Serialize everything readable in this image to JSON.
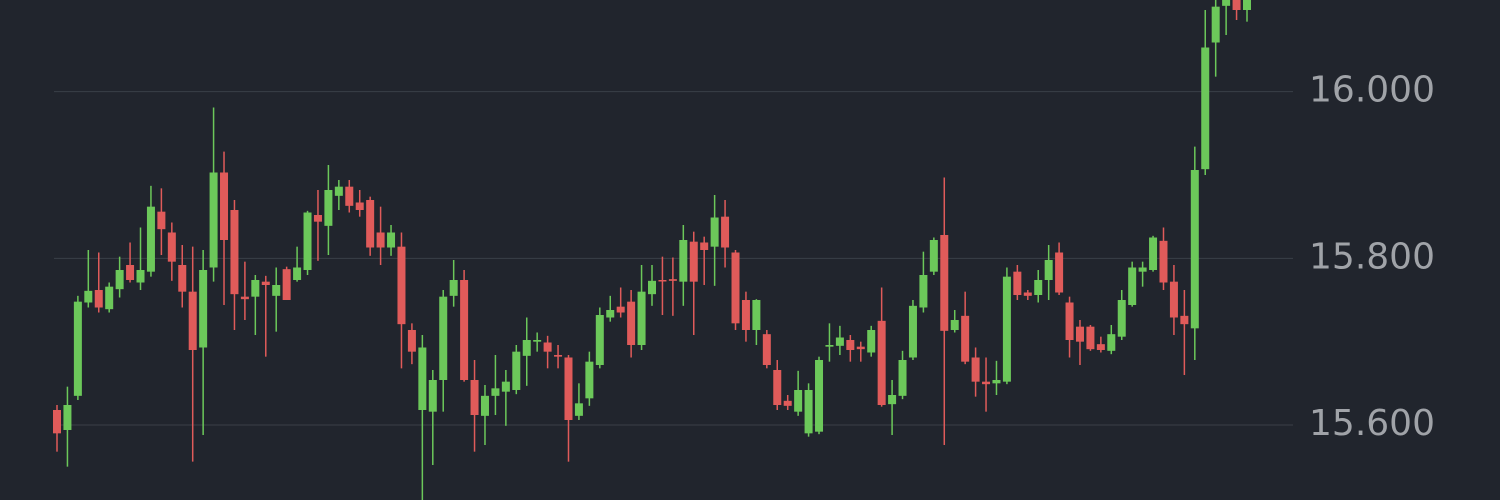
{
  "chart_data": {
    "type": "candlestick",
    "up_color": "#6cc85a",
    "down_color": "#e05b5a",
    "grid": true,
    "ylim": [
      15.51,
      16.11
    ],
    "yticks": [
      {
        "value": 15.6,
        "label": "15.600"
      },
      {
        "value": 15.8,
        "label": "15.800"
      },
      {
        "value": 16,
        "label": "16.000"
      }
    ],
    "open": [
      15.618,
      15.594,
      15.635,
      15.747,
      15.762,
      15.739,
      15.763,
      15.792,
      15.771,
      15.784,
      15.856,
      15.831,
      15.792,
      15.76,
      15.693,
      15.789,
      15.903,
      15.858,
      15.754,
      15.754,
      15.772,
      15.755,
      15.787,
      15.774,
      15.786,
      15.852,
      15.839,
      15.875,
      15.886,
      15.867,
      15.87,
      15.831,
      15.813,
      15.814,
      15.714,
      15.618,
      15.616,
      15.654,
      15.755,
      15.774,
      15.654,
      15.611,
      15.635,
      15.64,
      15.642,
      15.683,
      15.7,
      15.699,
      15.684,
      15.681,
      15.611,
      15.632,
      15.672,
      15.729,
      15.742,
      15.748,
      15.696,
      15.757,
      15.774,
      15.775,
      15.772,
      15.82,
      15.819,
      15.814,
      15.85,
      15.807,
      15.75,
      15.714,
      15.709,
      15.666,
      15.629,
      15.616,
      15.59,
      15.592,
      15.694,
      15.695,
      15.702,
      15.694,
      15.687,
      15.725,
      15.625,
      15.635,
      15.681,
      15.741,
      15.784,
      15.828,
      15.714,
      15.731,
      15.681,
      15.652,
      15.65,
      15.652,
      15.784,
      15.759,
      15.756,
      15.774,
      15.807,
      15.747,
      15.718,
      15.718,
      15.697,
      15.689,
      15.706,
      15.744,
      15.784,
      15.786,
      15.821,
      15.772,
      15.731,
      15.716,
      15.907,
      16.059,
      16.103,
      16.118,
      16.098
    ],
    "high": [
      15.624,
      15.646,
      15.755,
      15.81,
      15.807,
      15.771,
      15.802,
      15.819,
      15.837,
      15.887,
      15.884,
      15.843,
      15.816,
      15.814,
      15.81,
      15.981,
      15.928,
      15.87,
      15.796,
      15.78,
      15.779,
      15.789,
      15.79,
      15.814,
      15.857,
      15.882,
      15.912,
      15.894,
      15.894,
      15.882,
      15.874,
      15.862,
      15.84,
      15.831,
      15.722,
      15.708,
      15.666,
      15.762,
      15.798,
      15.786,
      15.678,
      15.648,
      15.684,
      15.666,
      15.696,
      15.729,
      15.711,
      15.707,
      15.696,
      15.684,
      15.65,
      15.688,
      15.741,
      15.755,
      15.765,
      15.762,
      15.792,
      15.792,
      15.802,
      15.801,
      15.84,
      15.832,
      15.826,
      15.876,
      15.87,
      15.81,
      15.76,
      15.751,
      15.714,
      15.678,
      15.636,
      15.665,
      15.65,
      15.682,
      15.722,
      15.719,
      15.708,
      15.7,
      15.719,
      15.765,
      15.654,
      15.689,
      15.75,
      15.808,
      15.825,
      15.897,
      15.738,
      15.76,
      15.693,
      15.681,
      15.677,
      15.789,
      15.792,
      15.762,
      15.786,
      15.816,
      15.819,
      15.754,
      15.726,
      15.72,
      15.706,
      15.72,
      15.762,
      15.796,
      15.796,
      15.827,
      15.837,
      15.792,
      15.762,
      15.934,
      16.098,
      16.12,
      16.125,
      16.125,
      16.125
    ],
    "low": [
      15.568,
      15.55,
      15.63,
      15.741,
      15.735,
      15.735,
      15.753,
      15.771,
      15.762,
      15.778,
      15.804,
      15.773,
      15.741,
      15.556,
      15.588,
      15.772,
      15.744,
      15.714,
      15.726,
      15.708,
      15.682,
      15.712,
      15.75,
      15.772,
      15.78,
      15.797,
      15.804,
      15.858,
      15.855,
      15.85,
      15.803,
      15.792,
      15.803,
      15.668,
      15.673,
      15.51,
      15.552,
      15.616,
      15.742,
      15.652,
      15.568,
      15.576,
      15.612,
      15.599,
      15.637,
      15.647,
      15.688,
      15.668,
      15.668,
      15.556,
      15.606,
      15.623,
      15.668,
      15.724,
      15.729,
      15.681,
      15.69,
      15.743,
      15.732,
      15.731,
      15.743,
      15.708,
      15.768,
      15.767,
      15.789,
      15.714,
      15.7,
      15.696,
      15.668,
      15.618,
      15.618,
      15.611,
      15.586,
      15.589,
      15.676,
      15.684,
      15.676,
      15.676,
      15.682,
      15.622,
      15.588,
      15.631,
      15.678,
      15.735,
      15.78,
      15.576,
      15.711,
      15.673,
      15.634,
      15.616,
      15.636,
      15.649,
      15.75,
      15.75,
      15.747,
      15.75,
      15.756,
      15.681,
      15.672,
      15.689,
      15.687,
      15.685,
      15.702,
      15.742,
      15.766,
      15.784,
      15.762,
      15.708,
      15.66,
      15.678,
      15.9,
      16.018,
      16.068,
      16.086,
      16.084
    ],
    "close": [
      15.59,
      15.624,
      15.748,
      15.761,
      15.741,
      15.766,
      15.786,
      15.774,
      15.786,
      15.862,
      15.835,
      15.796,
      15.76,
      15.69,
      15.786,
      15.903,
      15.822,
      15.757,
      15.751,
      15.774,
      15.768,
      15.768,
      15.75,
      15.789,
      15.855,
      15.844,
      15.882,
      15.886,
      15.863,
      15.858,
      15.813,
      15.813,
      15.831,
      15.721,
      15.688,
      15.693,
      15.654,
      15.754,
      15.774,
      15.654,
      15.612,
      15.635,
      15.644,
      15.652,
      15.688,
      15.702,
      15.702,
      15.688,
      15.682,
      15.606,
      15.626,
      15.676,
      15.732,
      15.738,
      15.735,
      15.696,
      15.76,
      15.773,
      15.773,
      15.773,
      15.822,
      15.772,
      15.81,
      15.849,
      15.813,
      15.722,
      15.714,
      15.75,
      15.672,
      15.624,
      15.623,
      15.642,
      15.642,
      15.678,
      15.696,
      15.705,
      15.69,
      15.691,
      15.714,
      15.624,
      15.636,
      15.678,
      15.743,
      15.78,
      15.822,
      15.713,
      15.726,
      15.676,
      15.652,
      15.649,
      15.654,
      15.778,
      15.756,
      15.755,
      15.774,
      15.798,
      15.759,
      15.702,
      15.7,
      15.691,
      15.69,
      15.709,
      15.75,
      15.789,
      15.789,
      15.825,
      15.771,
      15.729,
      15.721,
      15.906,
      16.053,
      16.102,
      16.116,
      16.098,
      16.118
    ]
  }
}
